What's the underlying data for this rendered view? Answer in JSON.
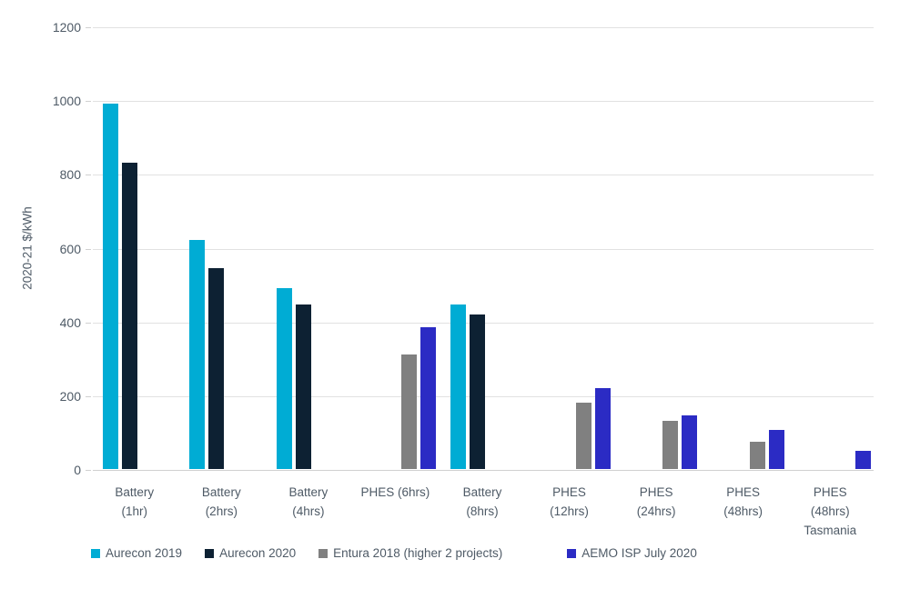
{
  "chart_data": {
    "type": "bar",
    "title": "",
    "xlabel": "",
    "ylabel": "2020-21 $/kWh",
    "ylim": [
      0,
      1200
    ],
    "yticks": [
      0,
      200,
      400,
      600,
      800,
      1000,
      1200
    ],
    "grid": "horizontal",
    "legend_position": "bottom",
    "categories": [
      [
        "Battery",
        "(1hr)"
      ],
      [
        "Battery",
        "(2hrs)"
      ],
      [
        "Battery",
        "(4hrs)"
      ],
      [
        "PHES (6hrs)"
      ],
      [
        "Battery",
        "(8hrs)"
      ],
      [
        "PHES",
        "(12hrs)"
      ],
      [
        "PHES",
        "(24hrs)"
      ],
      [
        "PHES",
        "(48hrs)"
      ],
      [
        "PHES",
        "(48hrs)",
        "Tasmania"
      ]
    ],
    "series": [
      {
        "name": "Aurecon 2019",
        "color": "#00ACD4",
        "values": [
          990,
          620,
          490,
          null,
          445,
          null,
          null,
          null,
          null
        ]
      },
      {
        "name": "Aurecon 2020",
        "color": "#0D2133",
        "values": [
          830,
          545,
          445,
          null,
          420,
          null,
          null,
          null,
          null
        ]
      },
      {
        "name": "Entura 2018 (higher 2 projects)",
        "color": "#808080",
        "values": [
          null,
          null,
          null,
          310,
          null,
          180,
          130,
          75,
          null
        ]
      },
      {
        "name": "AEMO ISP July 2020",
        "color": "#2B2BC4",
        "values": [
          null,
          null,
          null,
          385,
          null,
          220,
          145,
          105,
          50
        ]
      }
    ]
  },
  "colors": {
    "gridline": "#e1e1e1",
    "axis_line": "#d0d0d0",
    "text": "#4e5a66",
    "background": "#ffffff"
  }
}
